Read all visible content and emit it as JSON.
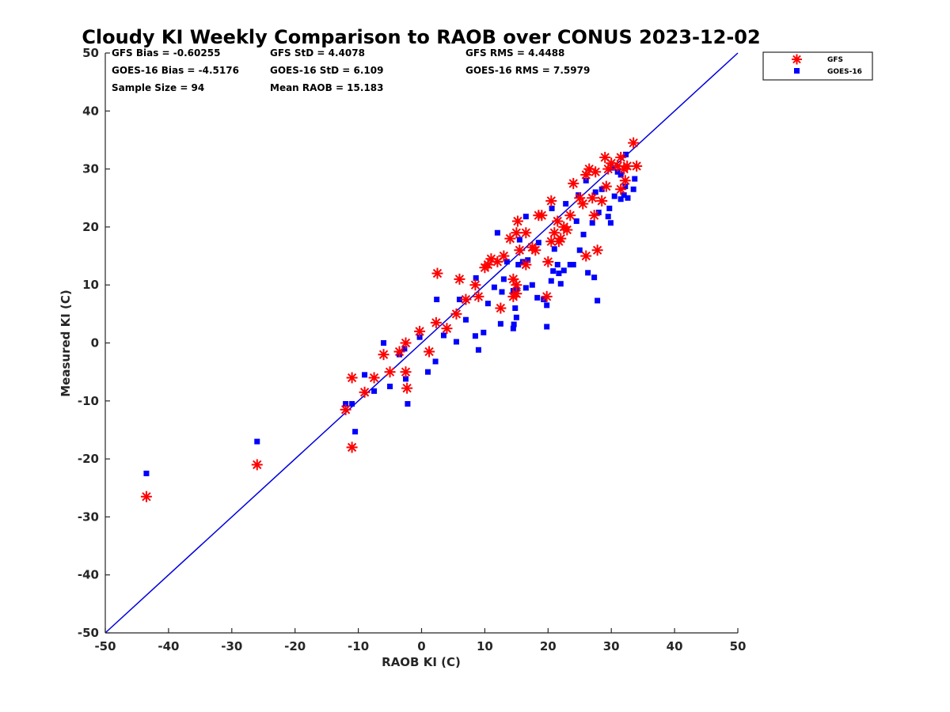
{
  "chart_data": {
    "type": "scatter",
    "title": "Cloudy KI Weekly Comparison to RAOB over CONUS 2023-12-02",
    "xlabel": "RAOB KI (C)",
    "ylabel": "Measured KI (C)",
    "xlim": [
      -50,
      50
    ],
    "ylim": [
      -50,
      50
    ],
    "xticks": [
      "-50",
      "-40",
      "-30",
      "-20",
      "-10",
      "0",
      "10",
      "20",
      "30",
      "40",
      "50"
    ],
    "yticks": [
      "-50",
      "-40",
      "-30",
      "-20",
      "-10",
      "0",
      "10",
      "20",
      "30",
      "40",
      "50"
    ],
    "grid": false,
    "legend_position": "outside top-right",
    "reference_line": {
      "type": "one-to-one",
      "color": "#0000dd"
    },
    "stats": {
      "gfs_bias": "GFS Bias = -0.60255",
      "goes_bias": "GOES-16 Bias = -4.5176",
      "sample_size": "Sample Size = 94",
      "gfs_std": "GFS StD = 4.4078",
      "goes_std": "GOES-16 StD = 6.109",
      "mean_raob": "Mean RAOB = 15.183",
      "gfs_rms": "GFS RMS = 4.4488",
      "goes_rms": "GOES-16 RMS = 7.5979"
    },
    "series": [
      {
        "name": "GFS",
        "marker": "asterisk",
        "color": "#ff0000",
        "points": [
          [
            -43.5,
            -26.5
          ],
          [
            -26,
            -21
          ],
          [
            -12,
            -11.5
          ],
          [
            -11,
            -6
          ],
          [
            -11,
            -18
          ],
          [
            -9,
            -8.5
          ],
          [
            -7.5,
            -6
          ],
          [
            -6,
            -2
          ],
          [
            -5,
            -5
          ],
          [
            -3.5,
            -1.5
          ],
          [
            -2.5,
            0
          ],
          [
            -2.5,
            -5
          ],
          [
            -2.3,
            -7.8
          ],
          [
            -0.3,
            2
          ],
          [
            1.2,
            -1.5
          ],
          [
            2.3,
            3.5
          ],
          [
            2.5,
            12
          ],
          [
            4,
            2.5
          ],
          [
            5.5,
            5
          ],
          [
            6,
            11
          ],
          [
            7,
            7.5
          ],
          [
            8.5,
            10
          ],
          [
            9,
            8
          ],
          [
            10,
            13
          ],
          [
            10.5,
            13.5
          ],
          [
            11,
            14.5
          ],
          [
            12,
            14
          ],
          [
            12.5,
            6
          ],
          [
            13,
            15
          ],
          [
            14,
            18
          ],
          [
            14.5,
            8
          ],
          [
            14.5,
            11
          ],
          [
            15,
            10
          ],
          [
            15,
            8.5
          ],
          [
            15,
            19
          ],
          [
            15.2,
            21
          ],
          [
            15.5,
            16
          ],
          [
            16.5,
            19
          ],
          [
            16.5,
            13.5
          ],
          [
            17.5,
            16.5
          ],
          [
            18,
            16
          ],
          [
            18.5,
            22
          ],
          [
            19,
            22
          ],
          [
            19.8,
            8
          ],
          [
            20,
            14
          ],
          [
            20.5,
            24.5
          ],
          [
            20.5,
            17.5
          ],
          [
            21,
            19
          ],
          [
            21.5,
            21
          ],
          [
            21.7,
            17.5
          ],
          [
            22,
            18
          ],
          [
            22.5,
            20
          ],
          [
            23,
            19.5
          ],
          [
            23.5,
            22
          ],
          [
            24,
            27.5
          ],
          [
            25,
            25
          ],
          [
            25.5,
            24
          ],
          [
            26,
            15
          ],
          [
            26,
            29
          ],
          [
            26.5,
            30
          ],
          [
            27,
            25
          ],
          [
            27.3,
            22
          ],
          [
            27.5,
            29.5
          ],
          [
            27.8,
            16
          ],
          [
            28.5,
            24.5
          ],
          [
            29,
            32
          ],
          [
            29.2,
            27
          ],
          [
            29.5,
            30
          ],
          [
            30,
            31
          ],
          [
            31,
            30.5
          ],
          [
            31.5,
            32
          ],
          [
            31.5,
            26.5
          ],
          [
            32,
            30
          ],
          [
            32.2,
            28
          ],
          [
            32.5,
            30.5
          ],
          [
            33.5,
            34.5
          ],
          [
            34,
            30.5
          ]
        ]
      },
      {
        "name": "GOES-16",
        "marker": "square",
        "color": "#0000ff",
        "points": [
          [
            -43.5,
            -22.5
          ],
          [
            -26,
            -17
          ],
          [
            -12,
            -10.5
          ],
          [
            -11,
            -10.5
          ],
          [
            -10.5,
            -15.3
          ],
          [
            -9,
            -5.5
          ],
          [
            -7.5,
            -8.3
          ],
          [
            -6,
            0
          ],
          [
            -5,
            -7.5
          ],
          [
            -3.5,
            -2
          ],
          [
            -2.7,
            -1
          ],
          [
            -2.5,
            -6.2
          ],
          [
            -2.2,
            -10.5
          ],
          [
            -0.3,
            1
          ],
          [
            1,
            -5
          ],
          [
            2.2,
            -3.2
          ],
          [
            2.4,
            7.5
          ],
          [
            3.5,
            1.3
          ],
          [
            5.5,
            0.2
          ],
          [
            6,
            7.5
          ],
          [
            7,
            4
          ],
          [
            8.5,
            1.2
          ],
          [
            8.6,
            11.2
          ],
          [
            9,
            -1.2
          ],
          [
            9.8,
            1.8
          ],
          [
            10.5,
            6.8
          ],
          [
            11.5,
            9.6
          ],
          [
            12,
            19
          ],
          [
            12.5,
            3.3
          ],
          [
            12.7,
            8.8
          ],
          [
            13,
            11
          ],
          [
            13.5,
            14
          ],
          [
            14.5,
            9
          ],
          [
            14.5,
            2.5
          ],
          [
            14.6,
            3.2
          ],
          [
            14.8,
            6
          ],
          [
            15,
            4.4
          ],
          [
            15,
            9.2
          ],
          [
            15.3,
            13.5
          ],
          [
            15.5,
            17.8
          ],
          [
            16,
            14
          ],
          [
            16.5,
            21.8
          ],
          [
            16.8,
            14.3
          ],
          [
            16.5,
            9.5
          ],
          [
            17.5,
            10
          ],
          [
            18.3,
            7.8
          ],
          [
            18.5,
            17.3
          ],
          [
            19.3,
            7.5
          ],
          [
            19.8,
            6.5
          ],
          [
            19.8,
            2.8
          ],
          [
            20.5,
            10.7
          ],
          [
            20.6,
            23.2
          ],
          [
            20.8,
            12.4
          ],
          [
            21,
            16.2
          ],
          [
            21.5,
            13.5
          ],
          [
            21.7,
            12
          ],
          [
            22,
            10.2
          ],
          [
            22.5,
            12.5
          ],
          [
            22.8,
            24
          ],
          [
            23.5,
            13.5
          ],
          [
            24,
            13.5
          ],
          [
            24.5,
            21
          ],
          [
            24.8,
            25.5
          ],
          [
            25,
            16
          ],
          [
            25.6,
            18.7
          ],
          [
            26,
            28
          ],
          [
            26.3,
            12.1
          ],
          [
            27,
            20.7
          ],
          [
            27.3,
            11.3
          ],
          [
            27.5,
            26
          ],
          [
            27.8,
            7.3
          ],
          [
            28,
            22.5
          ],
          [
            28.5,
            26.5
          ],
          [
            29.5,
            21.8
          ],
          [
            29.7,
            23.2
          ],
          [
            29.9,
            20.7
          ],
          [
            30.2,
            30.2
          ],
          [
            30.5,
            25.3
          ],
          [
            31,
            29.5
          ],
          [
            31.5,
            24.8
          ],
          [
            31.5,
            29
          ],
          [
            32,
            25.5
          ],
          [
            32.2,
            27
          ],
          [
            32.3,
            32.5
          ],
          [
            32.6,
            25
          ],
          [
            33.5,
            26.5
          ],
          [
            33.7,
            28.3
          ]
        ]
      }
    ]
  }
}
